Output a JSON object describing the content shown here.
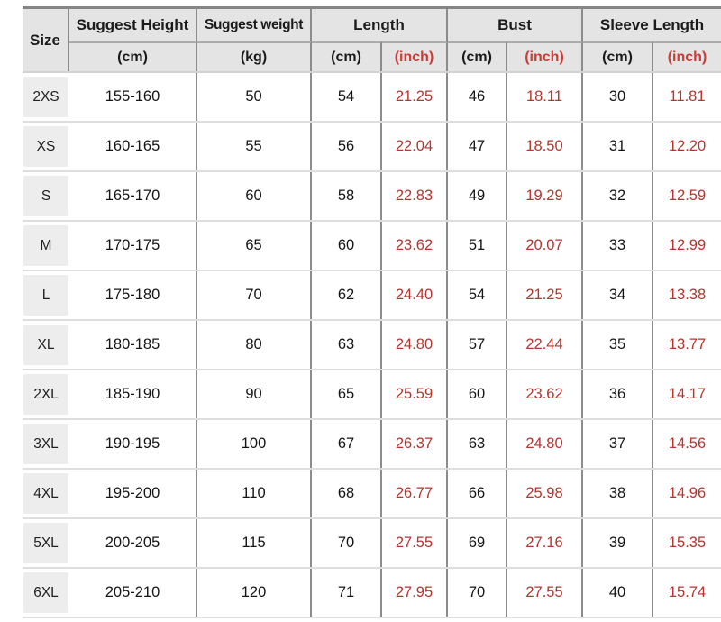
{
  "table": {
    "header": {
      "size_label": "Size",
      "groups": [
        {
          "label": "Suggest Height",
          "subs": [
            {
              "label": "(cm)"
            }
          ]
        },
        {
          "label": "Suggest weight",
          "subs": [
            {
              "label": "(kg)"
            }
          ]
        },
        {
          "label": "Length",
          "subs": [
            {
              "label": "(cm)"
            },
            {
              "label": "(inch)"
            }
          ]
        },
        {
          "label": "Bust",
          "subs": [
            {
              "label": "(cm)"
            },
            {
              "label": "(inch)"
            }
          ]
        },
        {
          "label": "Sleeve Length",
          "subs": [
            {
              "label": "(cm)"
            },
            {
              "label": "(inch)"
            }
          ]
        }
      ]
    },
    "rows": [
      {
        "size": "2XS",
        "height_cm": "155-160",
        "weight_kg": "50",
        "length_cm": "54",
        "length_inch": "21.25",
        "bust_cm": "46",
        "bust_inch": "18.11",
        "sleeve_cm": "30",
        "sleeve_inch": "11.81"
      },
      {
        "size": "XS",
        "height_cm": "160-165",
        "weight_kg": "55",
        "length_cm": "56",
        "length_inch": "22.04",
        "bust_cm": "47",
        "bust_inch": "18.50",
        "sleeve_cm": "31",
        "sleeve_inch": "12.20"
      },
      {
        "size": "S",
        "height_cm": "165-170",
        "weight_kg": "60",
        "length_cm": "58",
        "length_inch": "22.83",
        "bust_cm": "49",
        "bust_inch": "19.29",
        "sleeve_cm": "32",
        "sleeve_inch": "12.59"
      },
      {
        "size": "M",
        "height_cm": "170-175",
        "weight_kg": "65",
        "length_cm": "60",
        "length_inch": "23.62",
        "bust_cm": "51",
        "bust_inch": "20.07",
        "sleeve_cm": "33",
        "sleeve_inch": "12.99"
      },
      {
        "size": "L",
        "height_cm": "175-180",
        "weight_kg": "70",
        "length_cm": "62",
        "length_inch": "24.40",
        "bust_cm": "54",
        "bust_inch": "21.25",
        "sleeve_cm": "34",
        "sleeve_inch": "13.38"
      },
      {
        "size": "XL",
        "height_cm": "180-185",
        "weight_kg": "80",
        "length_cm": "63",
        "length_inch": "24.80",
        "bust_cm": "57",
        "bust_inch": "22.44",
        "sleeve_cm": "35",
        "sleeve_inch": "13.77"
      },
      {
        "size": "2XL",
        "height_cm": "185-190",
        "weight_kg": "90",
        "length_cm": "65",
        "length_inch": "25.59",
        "bust_cm": "60",
        "bust_inch": "23.62",
        "sleeve_cm": "36",
        "sleeve_inch": "14.17"
      },
      {
        "size": "3XL",
        "height_cm": "190-195",
        "weight_kg": "100",
        "length_cm": "67",
        "length_inch": "26.37",
        "bust_cm": "63",
        "bust_inch": "24.80",
        "sleeve_cm": "37",
        "sleeve_inch": "14.56"
      },
      {
        "size": "4XL",
        "height_cm": "195-200",
        "weight_kg": "110",
        "length_cm": "68",
        "length_inch": "26.77",
        "bust_cm": "66",
        "bust_inch": "25.98",
        "sleeve_cm": "38",
        "sleeve_inch": "14.96"
      },
      {
        "size": "5XL",
        "height_cm": "200-205",
        "weight_kg": "115",
        "length_cm": "70",
        "length_inch": "27.55",
        "bust_cm": "69",
        "bust_inch": "27.16",
        "sleeve_cm": "39",
        "sleeve_inch": "15.35"
      },
      {
        "size": "6XL",
        "height_cm": "205-210",
        "weight_kg": "120",
        "length_cm": "71",
        "length_inch": "27.95",
        "bust_cm": "70",
        "bust_inch": "27.55",
        "sleeve_cm": "40",
        "sleeve_inch": "15.74"
      }
    ]
  },
  "colors": {
    "inch_red": "#b5342e",
    "header_bg": "#e4e4e4",
    "grid_line_dark": "#8c8c8c",
    "grid_line_light": "#dedede"
  },
  "chart_data": {
    "type": "table",
    "title": "Garment size chart",
    "columns": [
      "Size",
      "Suggest Height (cm)",
      "Suggest weight (kg)",
      "Length (cm)",
      "Length (inch)",
      "Bust (cm)",
      "Bust (inch)",
      "Sleeve Length (cm)",
      "Sleeve Length (inch)"
    ],
    "rows": [
      [
        "2XS",
        "155-160",
        50,
        54,
        21.25,
        46,
        18.11,
        30,
        11.81
      ],
      [
        "XS",
        "160-165",
        55,
        56,
        22.04,
        47,
        18.5,
        31,
        12.2
      ],
      [
        "S",
        "165-170",
        60,
        58,
        22.83,
        49,
        19.29,
        32,
        12.59
      ],
      [
        "M",
        "170-175",
        65,
        60,
        23.62,
        51,
        20.07,
        33,
        12.99
      ],
      [
        "L",
        "175-180",
        70,
        62,
        24.4,
        54,
        21.25,
        34,
        13.38
      ],
      [
        "XL",
        "180-185",
        80,
        63,
        24.8,
        57,
        22.44,
        35,
        13.77
      ],
      [
        "2XL",
        "185-190",
        90,
        65,
        25.59,
        60,
        23.62,
        36,
        14.17
      ],
      [
        "3XL",
        "190-195",
        100,
        67,
        26.37,
        63,
        24.8,
        37,
        14.56
      ],
      [
        "4XL",
        "195-200",
        110,
        68,
        26.77,
        66,
        25.98,
        38,
        14.96
      ],
      [
        "5XL",
        "200-205",
        115,
        70,
        27.55,
        69,
        27.16,
        39,
        15.35
      ],
      [
        "6XL",
        "205-210",
        120,
        71,
        27.95,
        70,
        27.55,
        40,
        15.74
      ]
    ]
  }
}
